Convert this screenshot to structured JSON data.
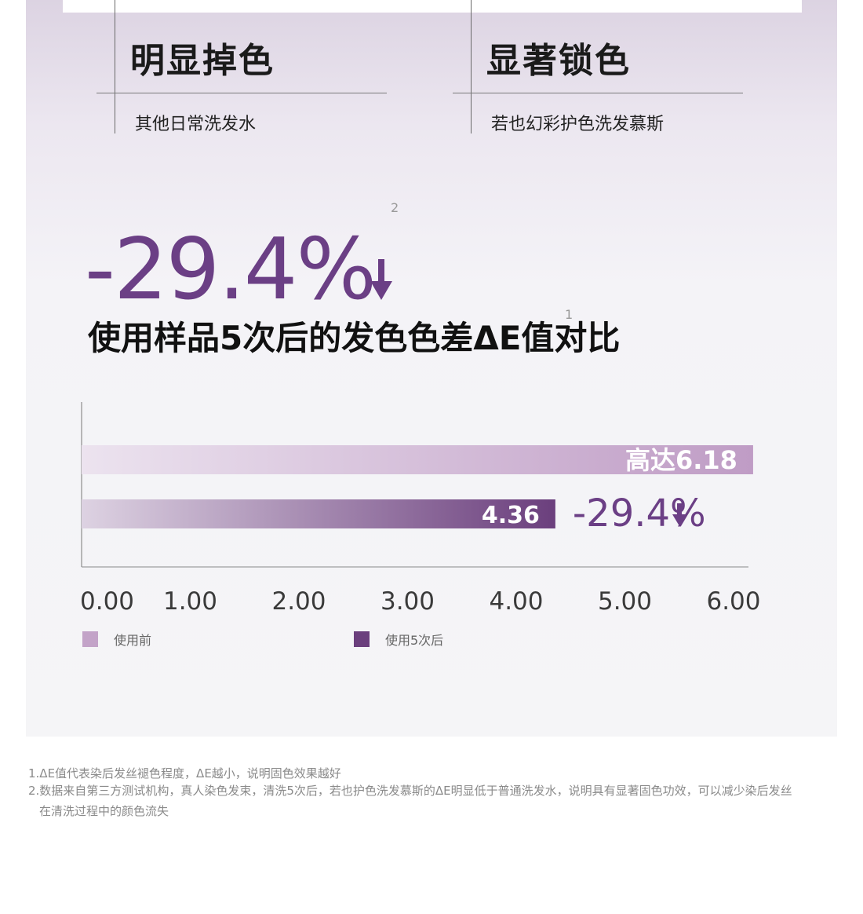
{
  "compare": {
    "left": {
      "title": "明显掉色",
      "subtitle": "其他日常洗发水"
    },
    "right": {
      "title": "显著锁色",
      "subtitle": "若也幻彩护色洗发慕斯"
    }
  },
  "headline": {
    "value": "-29.4%",
    "sup_2": "2",
    "sup_1": "1"
  },
  "chart_title": "使用样品5次后的发色色差ΔE值对比",
  "colors": {
    "accent": "#6b3f85",
    "before": "#c3a3c8",
    "after": "#6b3f7d"
  },
  "chart_data": {
    "type": "bar",
    "orientation": "horizontal",
    "title": "使用样品5次后的发色色差ΔE值对比",
    "xlim": [
      0,
      6
    ],
    "x_ticks": [
      "0.00",
      "1.00",
      "2.00",
      "3.00",
      "4.00",
      "5.00",
      "6.00"
    ],
    "series": [
      {
        "name": "使用前",
        "value": 6.18,
        "label": "高达6.18",
        "color": "#c3a3c8"
      },
      {
        "name": "使用5次后",
        "value": 4.36,
        "label": "4.36",
        "color": "#6b3f7d"
      }
    ],
    "annotation": "-29.4%",
    "legend_position": "bottom"
  },
  "footnotes": [
    "1.ΔE值代表染后发丝褪色程度，ΔE越小，说明固色效果越好",
    "2.数据来自第三方测试机构，真人染色发束，清洗5次后，若也护色洗发慕斯的ΔE明显低于普通洗发水，说明具有显著固色功效，可以减少染后发丝",
    "在清洗过程中的颜色流失"
  ]
}
